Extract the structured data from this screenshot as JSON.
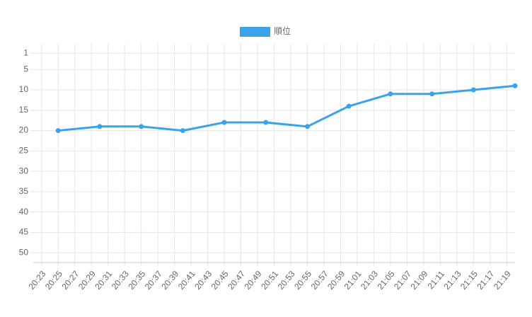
{
  "chart_data": {
    "type": "line",
    "x": [
      "20:25",
      "20:30",
      "20:35",
      "20:40",
      "20:45",
      "20:50",
      "20:55",
      "21:00",
      "21:05",
      "21:10",
      "21:15",
      "21:20"
    ],
    "series": [
      {
        "name": "順位",
        "color": "#3ba3e8",
        "values": [
          20,
          19,
          19,
          20,
          18,
          18,
          19,
          14,
          11,
          11,
          10,
          9
        ]
      }
    ],
    "xlim": [
      "20:22",
      "21:20"
    ],
    "xticks": [
      "20:23",
      "20:25",
      "20:27",
      "20:29",
      "20:31",
      "20:33",
      "20:35",
      "20:37",
      "20:39",
      "20:41",
      "20:43",
      "20:45",
      "20:47",
      "20:49",
      "20:51",
      "20:53",
      "20:55",
      "20:57",
      "20:59",
      "21:01",
      "21:03",
      "21:05",
      "21:07",
      "21:09",
      "21:11",
      "21:13",
      "21:15",
      "21:17",
      "21:19"
    ],
    "ylim": [
      -1.3,
      52.4
    ],
    "y_reversed": true,
    "yticks": [
      1,
      5,
      10,
      15,
      20,
      25,
      30,
      35,
      40,
      45,
      50
    ],
    "grid": true,
    "legend": "top"
  }
}
